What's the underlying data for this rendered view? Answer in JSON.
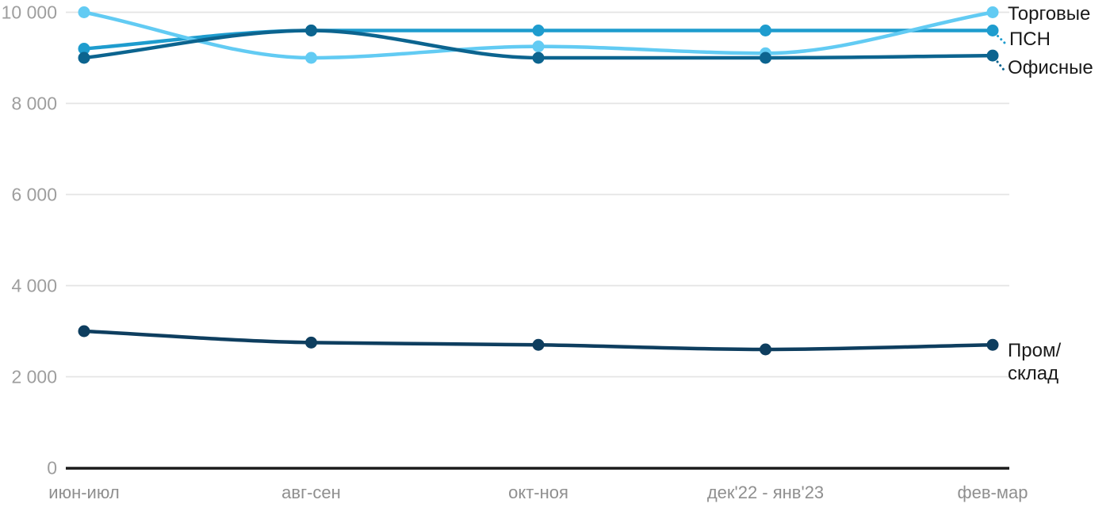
{
  "chart_data": {
    "type": "line",
    "categories": [
      "июн-июл",
      "авг-сен",
      "окт-ноя",
      "дек'22 - янв'23",
      "фев-мар"
    ],
    "series": [
      {
        "name": "Торговые",
        "color": "#62CBF3",
        "values": [
          10000,
          9000,
          9250,
          9100,
          10000
        ]
      },
      {
        "name": "ПСН",
        "color": "#1E9CCE",
        "values": [
          9200,
          9600,
          9600,
          9600,
          9600
        ]
      },
      {
        "name": "Офисные",
        "color": "#0C648F",
        "values": [
          9000,
          9600,
          9000,
          9000,
          9050
        ]
      },
      {
        "name": "Пром/склад",
        "color": "#0E3E5F",
        "values": [
          3000,
          2750,
          2700,
          2600,
          2700
        ]
      }
    ],
    "yticks": {
      "values": [
        0,
        2000,
        4000,
        6000,
        8000,
        10000
      ],
      "labels": [
        "0",
        "2 000",
        "4 000",
        "6 000",
        "8 000",
        "10 000"
      ]
    },
    "ylim": [
      0,
      10000
    ],
    "grid": "horizontal-only",
    "legend_position": "right-at-line-ends",
    "colors": {
      "baseline": "#1a1a1a",
      "gridline": "#e4e4e4",
      "y_tick_label": "#9e9e9e",
      "x_tick_label": "#8f8f8f",
      "legend_text": "#1a1a1a",
      "background": "#ffffff"
    }
  }
}
